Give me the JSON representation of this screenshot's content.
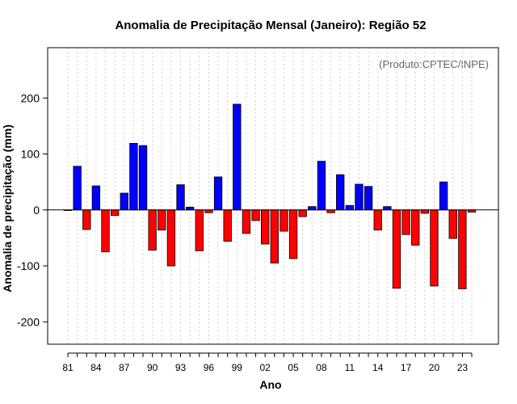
{
  "chart_data": {
    "type": "bar",
    "title": "Anomalia de Precipitação Mensal (Janeiro): Região 52",
    "xlabel": "Ano",
    "ylabel": "Anomalia de precipitação (mm)",
    "credit": "(Produto:CPTEC/INPE)",
    "ylim": [
      -240,
      290
    ],
    "yticks": [
      -200,
      -100,
      0,
      100,
      200
    ],
    "years": [
      1981,
      1982,
      1983,
      1984,
      1985,
      1986,
      1987,
      1988,
      1989,
      1990,
      1991,
      1992,
      1993,
      1994,
      1995,
      1996,
      1997,
      1998,
      1999,
      2000,
      2001,
      2002,
      2003,
      2004,
      2005,
      2006,
      2007,
      2008,
      2009,
      2010,
      2011,
      2012,
      2013,
      2014,
      2015,
      2016,
      2017,
      2018,
      2019,
      2020,
      2021,
      2022,
      2023,
      2024
    ],
    "values": [
      -1,
      78,
      -35,
      43,
      -75,
      -10,
      30,
      119,
      115,
      -72,
      -36,
      -100,
      45,
      5,
      -73,
      -5,
      59,
      -56,
      189,
      -42,
      -19,
      -61,
      -95,
      -38,
      -87,
      -12,
      6,
      87,
      -5,
      63,
      8,
      46,
      42,
      -36,
      6,
      -140,
      -44,
      -63,
      -6,
      -136,
      50,
      -51,
      -141,
      -4
    ],
    "xtick_labels": [
      "81",
      "84",
      "87",
      "90",
      "93",
      "96",
      "99",
      "02",
      "05",
      "08",
      "11",
      "14",
      "17",
      "20",
      "23"
    ],
    "colors": {
      "positive": "#0000ff",
      "negative": "#ff0000",
      "grid": "#cfcfcf",
      "credit": "#666666"
    }
  }
}
